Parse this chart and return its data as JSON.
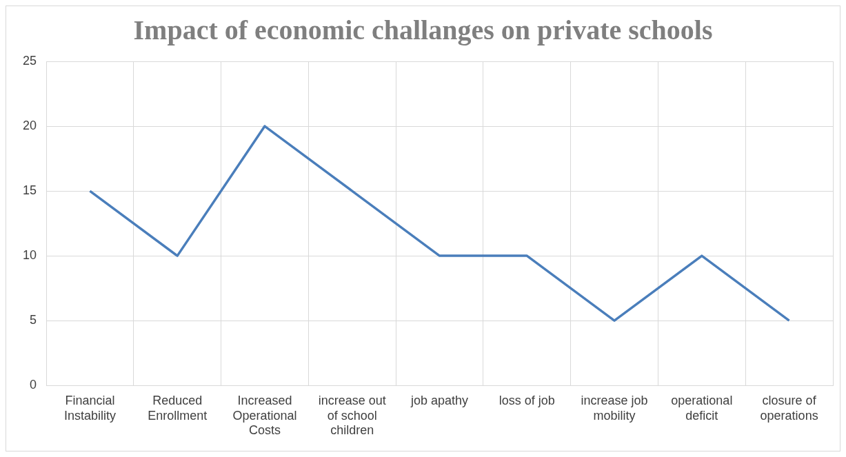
{
  "chart_data": {
    "type": "line",
    "title": "Impact of economic challanges on private schools",
    "categories": [
      "Financial Instability",
      "Reduced Enrollment",
      "Increased Operational Costs",
      "increase out of school children",
      "job apathy",
      "loss of job",
      "increase job mobility",
      "operational deficit",
      "closure of operations"
    ],
    "series": [
      {
        "color": "#4a7ebb",
        "values": [
          15,
          10,
          20,
          15,
          10,
          10,
          5,
          10,
          5
        ]
      }
    ],
    "ylim": [
      0,
      25
    ],
    "yticks": [
      0,
      5,
      10,
      15,
      20,
      25
    ],
    "grid": true,
    "legend": false,
    "marker": "none",
    "line_style": "solid"
  }
}
